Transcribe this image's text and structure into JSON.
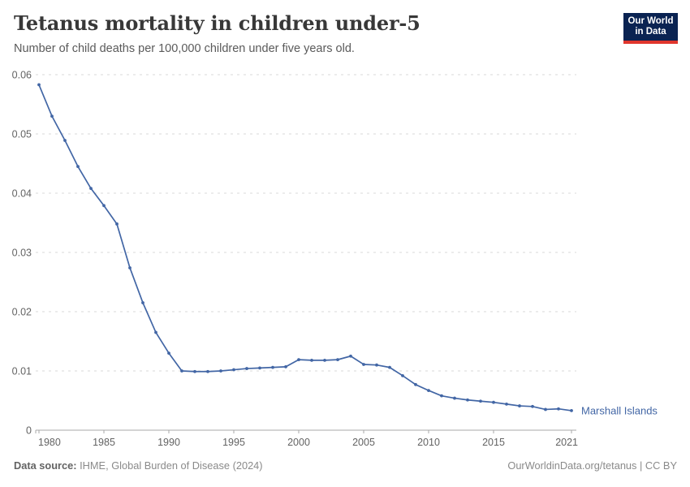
{
  "header": {
    "title": "Tetanus mortality in children under-5",
    "subtitle": "Number of child deaths per 100,000 children under five years old.",
    "logo": {
      "line1": "Our World",
      "line2": "in Data",
      "bg_color": "#0a2352",
      "accent_color": "#e0362d"
    }
  },
  "chart_data": {
    "type": "line",
    "title": "Tetanus mortality in children under-5",
    "subtitle": "Number of child deaths per 100,000 children under five years old.",
    "x": [
      1980,
      1981,
      1982,
      1983,
      1984,
      1985,
      1986,
      1987,
      1988,
      1989,
      1990,
      1991,
      1992,
      1993,
      1994,
      1995,
      1996,
      1997,
      1998,
      1999,
      2000,
      2001,
      2002,
      2003,
      2004,
      2005,
      2006,
      2007,
      2008,
      2009,
      2010,
      2011,
      2012,
      2013,
      2014,
      2015,
      2016,
      2017,
      2018,
      2019,
      2020,
      2021
    ],
    "series": [
      {
        "name": "Marshall Islands",
        "color": "#4266a5",
        "values": [
          0.0583,
          0.053,
          0.0489,
          0.0445,
          0.0408,
          0.0379,
          0.0348,
          0.0274,
          0.0215,
          0.0165,
          0.013,
          0.01,
          0.0099,
          0.0099,
          0.01,
          0.0102,
          0.0104,
          0.0105,
          0.0106,
          0.0107,
          0.0119,
          0.0118,
          0.0118,
          0.0119,
          0.0125,
          0.0111,
          0.011,
          0.0106,
          0.0092,
          0.0077,
          0.0067,
          0.0058,
          0.0054,
          0.0051,
          0.0049,
          0.0047,
          0.0044,
          0.0041,
          0.004,
          0.0035,
          0.0036,
          0.0033
        ]
      }
    ],
    "xticks": [
      1980,
      1985,
      1990,
      1995,
      2000,
      2005,
      2010,
      2015,
      2021
    ],
    "yticks": [
      0,
      0.01,
      0.02,
      0.03,
      0.04,
      0.05,
      0.06
    ],
    "xlim": [
      1980,
      2021
    ],
    "ylim": [
      0,
      0.06
    ],
    "xlabel": "",
    "ylabel": "",
    "grid": "horizontal-dashed",
    "legend": "end-of-line-label",
    "colors": {
      "grid_line": "#d9d9d9",
      "axis_line": "#a8a8a8",
      "tick_label": "#636363"
    }
  },
  "footer": {
    "source_label": "Data source:",
    "source_text": " IHME, Global Burden of Disease (2024)",
    "credit": "OurWorldinData.org/tetanus | CC BY"
  }
}
